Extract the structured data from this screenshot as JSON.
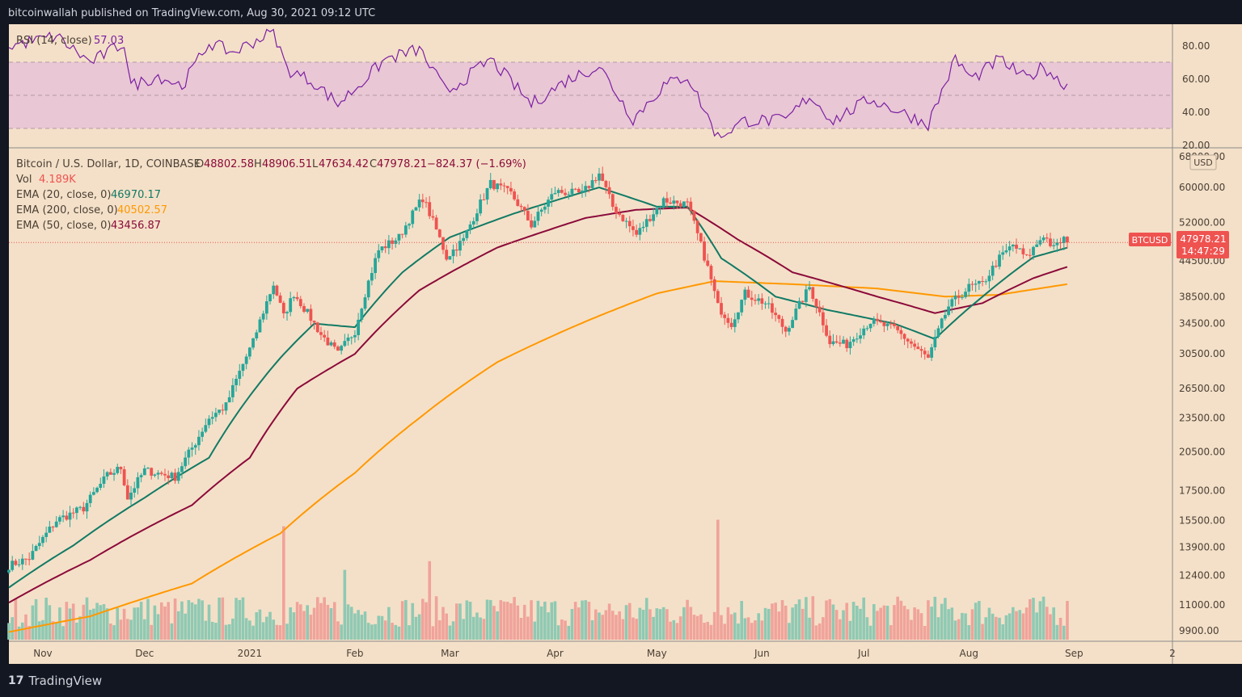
{
  "header": {
    "publisher": "bitcoinwallah published on TradingView.com, Aug 30, 2021 09:12 UTC"
  },
  "footer": {
    "logo": "17",
    "brand": "TradingView"
  },
  "colors": {
    "background": "#f4e0c8",
    "frame": "#131722",
    "up": "#26a69a",
    "down": "#ef5350",
    "ema20": "#117a65",
    "ema50": "#8b0a3a",
    "ema200": "#ff9800",
    "rsi": "#7b1fa2",
    "rsi_band": "#e9c7d5",
    "price_line": "#ef5350"
  },
  "rsi_panel": {
    "legend_label": "RSI (14, close)",
    "legend_value": "57.03",
    "ticks": [
      "80.00",
      "60.00",
      "40.00",
      "20.00"
    ],
    "band": [
      30,
      70
    ],
    "mid": 50
  },
  "price_panel": {
    "legend": {
      "symbol": "Bitcoin / U.S. Dollar, 1D, COINBASE",
      "open_label": "O",
      "open": "48802.58",
      "high_label": "H",
      "high": "48906.51",
      "low_label": "L",
      "low": "47634.42",
      "close_label": "C",
      "close": "47978.21",
      "change": "−824.37 (−1.69%)",
      "vol_label": "Vol",
      "vol_value": "4.189K",
      "ema20_label": "EMA (20, close, 0)",
      "ema20_value": "46970.17",
      "ema200_label": "EMA (200, close, 0)",
      "ema200_value": "40502.57",
      "ema50_label": "EMA (50, close, 0)",
      "ema50_value": "43456.87"
    },
    "currency": "USD",
    "ticks": [
      "68000.00",
      "60000.00",
      "52000.00",
      "44500.00",
      "38500.00",
      "34500.00",
      "30500.00",
      "26500.00",
      "23500.00",
      "20500.00",
      "17500.00",
      "15500.00",
      "13900.00",
      "12400.00",
      "11000.00",
      "9900.00"
    ],
    "price_tag": {
      "symbol": "BTCUSD",
      "price": "47978.21",
      "countdown": "14:47:29"
    }
  },
  "x_axis": {
    "labels": [
      "Nov",
      "Dec",
      "2021",
      "Feb",
      "Mar",
      "Apr",
      "May",
      "Jun",
      "Jul",
      "Aug",
      "Sep",
      "2"
    ]
  },
  "chart_data": {
    "type": "candlestick",
    "title": "Bitcoin / U.S. Dollar, 1D, COINBASE",
    "y_scale": "log",
    "ylim": [
      9900,
      68000
    ],
    "x_range": [
      "2020-10-22",
      "2021-09-30"
    ],
    "close_anchors": [
      [
        "2020-10-22",
        12900
      ],
      [
        "2020-10-28",
        13300
      ],
      [
        "2020-11-05",
        15500
      ],
      [
        "2020-11-13",
        16300
      ],
      [
        "2020-11-20",
        18600
      ],
      [
        "2020-11-24",
        19200
      ],
      [
        "2020-11-26",
        17000
      ],
      [
        "2020-12-01",
        19000
      ],
      [
        "2020-12-10",
        18500
      ],
      [
        "2020-12-16",
        21300
      ],
      [
        "2020-12-20",
        23500
      ],
      [
        "2020-12-25",
        24700
      ],
      [
        "2021-01-02",
        32000
      ],
      [
        "2021-01-08",
        40500
      ],
      [
        "2021-01-11",
        35500
      ],
      [
        "2021-01-14",
        39000
      ],
      [
        "2021-01-22",
        33000
      ],
      [
        "2021-01-27",
        30500
      ],
      [
        "2021-02-01",
        33500
      ],
      [
        "2021-02-08",
        46500
      ],
      [
        "2021-02-14",
        49000
      ],
      [
        "2021-02-21",
        57500
      ],
      [
        "2021-02-28",
        45200
      ],
      [
        "2021-03-05",
        48500
      ],
      [
        "2021-03-13",
        61000
      ],
      [
        "2021-03-19",
        58500
      ],
      [
        "2021-03-25",
        51500
      ],
      [
        "2021-04-01",
        59000
      ],
      [
        "2021-04-09",
        58500
      ],
      [
        "2021-04-14",
        63500
      ],
      [
        "2021-04-18",
        55500
      ],
      [
        "2021-04-25",
        49500
      ],
      [
        "2021-05-03",
        57000
      ],
      [
        "2021-05-10",
        56000
      ],
      [
        "2021-05-13",
        49500
      ],
      [
        "2021-05-19",
        37000
      ],
      [
        "2021-05-23",
        34500
      ],
      [
        "2021-05-27",
        39000
      ],
      [
        "2021-06-02",
        37500
      ],
      [
        "2021-06-08",
        33500
      ],
      [
        "2021-06-15",
        40000
      ],
      [
        "2021-06-21",
        32000
      ],
      [
        "2021-06-26",
        31700
      ],
      [
        "2021-07-03",
        34800
      ],
      [
        "2021-07-10",
        33800
      ],
      [
        "2021-07-15",
        31800
      ],
      [
        "2021-07-20",
        29900
      ],
      [
        "2021-07-26",
        37000
      ],
      [
        "2021-08-01",
        40000
      ],
      [
        "2021-08-05",
        40500
      ],
      [
        "2021-08-10",
        45000
      ],
      [
        "2021-08-14",
        47500
      ],
      [
        "2021-08-18",
        45000
      ],
      [
        "2021-08-23",
        49500
      ],
      [
        "2021-08-26",
        46800
      ],
      [
        "2021-08-29",
        48800
      ],
      [
        "2021-08-30",
        47978
      ]
    ],
    "ema20_anchors": [
      [
        "2020-10-22",
        11800
      ],
      [
        "2020-11-10",
        14000
      ],
      [
        "2020-12-01",
        17000
      ],
      [
        "2020-12-20",
        20000
      ],
      [
        "2021-01-10",
        30000
      ],
      [
        "2021-01-20",
        34500
      ],
      [
        "2021-02-01",
        34000
      ],
      [
        "2021-02-15",
        42500
      ],
      [
        "2021-03-01",
        49000
      ],
      [
        "2021-03-20",
        54000
      ],
      [
        "2021-04-14",
        60000
      ],
      [
        "2021-05-01",
        55500
      ],
      [
        "2021-05-10",
        55500
      ],
      [
        "2021-05-20",
        45000
      ],
      [
        "2021-06-05",
        38500
      ],
      [
        "2021-06-20",
        36500
      ],
      [
        "2021-07-10",
        34500
      ],
      [
        "2021-07-22",
        32400
      ],
      [
        "2021-08-05",
        38500
      ],
      [
        "2021-08-20",
        45200
      ],
      [
        "2021-08-30",
        46970
      ]
    ],
    "ema50_anchors": [
      [
        "2020-10-22",
        11100
      ],
      [
        "2020-11-15",
        13200
      ],
      [
        "2020-12-15",
        16500
      ],
      [
        "2021-01-01",
        20000
      ],
      [
        "2021-01-15",
        26500
      ],
      [
        "2021-02-01",
        30500
      ],
      [
        "2021-02-20",
        39500
      ],
      [
        "2021-03-15",
        47000
      ],
      [
        "2021-04-10",
        53000
      ],
      [
        "2021-04-25",
        54800
      ],
      [
        "2021-05-10",
        55300
      ],
      [
        "2021-05-25",
        48500
      ],
      [
        "2021-06-10",
        42500
      ],
      [
        "2021-07-05",
        38500
      ],
      [
        "2021-07-22",
        36000
      ],
      [
        "2021-08-05",
        37500
      ],
      [
        "2021-08-20",
        41500
      ],
      [
        "2021-08-30",
        43457
      ]
    ],
    "ema200_anchors": [
      [
        "2020-10-22",
        9850
      ],
      [
        "2020-11-15",
        10500
      ],
      [
        "2020-12-15",
        12000
      ],
      [
        "2021-01-10",
        14700
      ],
      [
        "2021-02-01",
        18800
      ],
      [
        "2021-02-20",
        23500
      ],
      [
        "2021-03-15",
        29500
      ],
      [
        "2021-04-10",
        34800
      ],
      [
        "2021-05-01",
        39000
      ],
      [
        "2021-05-18",
        41000
      ],
      [
        "2021-06-10",
        40500
      ],
      [
        "2021-07-05",
        39800
      ],
      [
        "2021-07-25",
        38500
      ],
      [
        "2021-08-10",
        38800
      ],
      [
        "2021-08-30",
        40502
      ]
    ],
    "rsi_anchors": [
      [
        "2020-10-22",
        80
      ],
      [
        "2020-11-05",
        86
      ],
      [
        "2020-11-15",
        70
      ],
      [
        "2020-11-25",
        82
      ],
      [
        "2020-11-27",
        56
      ],
      [
        "2020-12-05",
        62
      ],
      [
        "2020-12-12",
        56
      ],
      [
        "2020-12-20",
        82
      ],
      [
        "2020-12-27",
        76
      ],
      [
        "2021-01-08",
        89
      ],
      [
        "2021-01-12",
        66
      ],
      [
        "2021-01-20",
        58
      ],
      [
        "2021-01-27",
        45
      ],
      [
        "2021-02-03",
        58
      ],
      [
        "2021-02-10",
        72
      ],
      [
        "2021-02-20",
        78
      ],
      [
        "2021-02-28",
        52
      ],
      [
        "2021-03-13",
        72
      ],
      [
        "2021-03-25",
        45
      ],
      [
        "2021-04-05",
        60
      ],
      [
        "2021-04-14",
        68
      ],
      [
        "2021-04-24",
        36
      ],
      [
        "2021-05-03",
        56
      ],
      [
        "2021-05-10",
        62
      ],
      [
        "2021-05-19",
        25
      ],
      [
        "2021-05-27",
        35
      ],
      [
        "2021-06-08",
        35
      ],
      [
        "2021-06-15",
        50
      ],
      [
        "2021-06-22",
        35
      ],
      [
        "2021-07-03",
        48
      ],
      [
        "2021-07-20",
        33
      ],
      [
        "2021-07-28",
        72
      ],
      [
        "2021-08-02",
        60
      ],
      [
        "2021-08-10",
        72
      ],
      [
        "2021-08-18",
        60
      ],
      [
        "2021-08-23",
        68
      ],
      [
        "2021-08-28",
        58
      ],
      [
        "2021-08-30",
        57
      ]
    ],
    "volume_note": "volume bars in thousands, approximate",
    "volume_spikes": [
      [
        "2021-01-11",
        52
      ],
      [
        "2021-02-23",
        36
      ],
      [
        "2021-05-19",
        55
      ],
      [
        "2021-01-29",
        32
      ]
    ]
  }
}
